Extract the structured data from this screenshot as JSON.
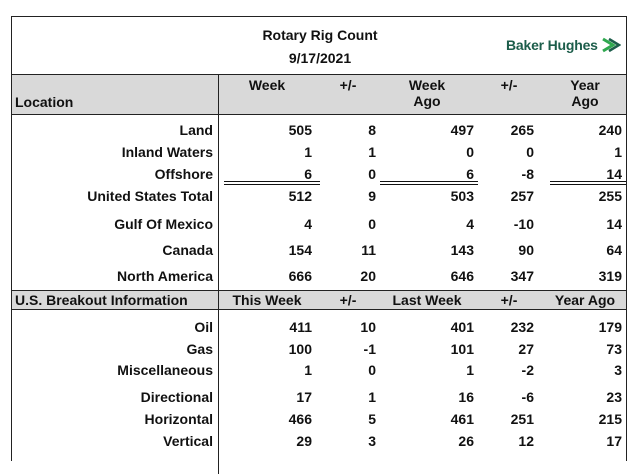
{
  "header": {
    "title": "Rotary Rig Count",
    "date": "9/17/2021",
    "brand": "Baker Hughes"
  },
  "section1": {
    "label": "Location",
    "columns": [
      "Week",
      "+/-",
      "Week\nAgo",
      "+/-",
      "Year\nAgo"
    ],
    "rows": [
      {
        "label": "Land",
        "values": [
          "505",
          "8",
          "497",
          "265",
          "240"
        ]
      },
      {
        "label": "Inland Waters",
        "values": [
          "1",
          "1",
          "0",
          "0",
          "1"
        ]
      },
      {
        "label": "Offshore",
        "values": [
          "6",
          "0",
          "6",
          "-8",
          "14"
        ]
      },
      {
        "label": "United States Total",
        "values": [
          "512",
          "9",
          "503",
          "257",
          "255"
        ]
      },
      {
        "label": "Gulf Of Mexico",
        "values": [
          "4",
          "0",
          "4",
          "-10",
          "14"
        ]
      },
      {
        "label": "Canada",
        "values": [
          "154",
          "11",
          "143",
          "90",
          "64"
        ]
      },
      {
        "label": "North America",
        "values": [
          "666",
          "20",
          "646",
          "347",
          "319"
        ]
      }
    ]
  },
  "section2": {
    "label": "U.S. Breakout Information",
    "columns": [
      "This Week",
      "+/-",
      "Last Week",
      "+/-",
      "Year Ago"
    ],
    "rows": [
      {
        "label": "Oil",
        "values": [
          "411",
          "10",
          "401",
          "232",
          "179"
        ]
      },
      {
        "label": "Gas",
        "values": [
          "100",
          "-1",
          "101",
          "27",
          "73"
        ]
      },
      {
        "label": "Miscellaneous",
        "values": [
          "1",
          "0",
          "1",
          "-2",
          "3"
        ]
      },
      {
        "label": "Directional",
        "values": [
          "17",
          "1",
          "16",
          "-6",
          "23"
        ]
      },
      {
        "label": "Horizontal",
        "values": [
          "466",
          "5",
          "461",
          "251",
          "215"
        ]
      },
      {
        "label": "Vertical",
        "values": [
          "29",
          "3",
          "26",
          "12",
          "17"
        ]
      }
    ]
  },
  "colors": {
    "band": "#d9d9d9",
    "brand": "#1c5d4a",
    "brand_accent": "#2fa84f"
  },
  "icons": {
    "brand_logo": "baker-hughes-chevron-icon"
  }
}
